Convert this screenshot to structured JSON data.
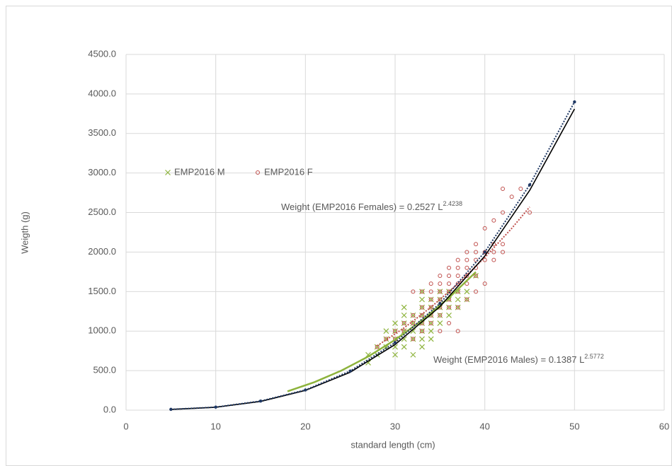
{
  "chart_data": {
    "type": "scatter",
    "xlabel": "standard length (cm)",
    "ylabel": "Weigth (g)",
    "xlim": [
      0,
      60
    ],
    "xticks": [
      0,
      10,
      20,
      30,
      40,
      50,
      60
    ],
    "ylim": [
      0,
      4500
    ],
    "yticks": [
      {
        "value": 0,
        "label": "0.0"
      },
      {
        "value": 500,
        "label": "500.0"
      },
      {
        "value": 1000,
        "label": "1000.0"
      },
      {
        "value": 1500,
        "label": "1500.0"
      },
      {
        "value": 2000,
        "label": "2000.0"
      },
      {
        "value": 2500,
        "label": "2500.0"
      },
      {
        "value": 3000,
        "label": "3000.0"
      },
      {
        "value": 3500,
        "label": "3500.0"
      },
      {
        "value": 4000,
        "label": "4000.0"
      },
      {
        "value": 4500,
        "label": "4500.0"
      }
    ],
    "grid": true,
    "legend": "middle-left",
    "series": [
      {
        "name": "EMP2016 M",
        "color": "#8db33c",
        "marker": "x",
        "line": null,
        "x": [
          27,
          27,
          28,
          28,
          29,
          29,
          29,
          30,
          30,
          30,
          30,
          30,
          31,
          31,
          31,
          31,
          31,
          31,
          32,
          32,
          32,
          32,
          32,
          33,
          33,
          33,
          33,
          33,
          33,
          33,
          33,
          34,
          34,
          34,
          34,
          34,
          34,
          35,
          35,
          35,
          35,
          35,
          36,
          36,
          36,
          36,
          37,
          37,
          37,
          38,
          38,
          39
        ],
        "values": [
          600,
          700,
          700,
          800,
          800,
          900,
          1000,
          700,
          800,
          900,
          1000,
          1100,
          800,
          900,
          1000,
          1100,
          1200,
          1300,
          700,
          900,
          1000,
          1100,
          1200,
          800,
          900,
          1000,
          1100,
          1200,
          1300,
          1400,
          1500,
          900,
          1000,
          1100,
          1200,
          1300,
          1400,
          1100,
          1200,
          1300,
          1400,
          1500,
          1200,
          1300,
          1400,
          1500,
          1300,
          1400,
          1500,
          1400,
          1500,
          1700
        ]
      },
      {
        "name": "EMP2016 F",
        "color": "#c0504d",
        "marker": "circle",
        "line": null,
        "x": [
          28,
          29,
          30,
          30,
          31,
          31,
          32,
          32,
          32,
          32,
          33,
          33,
          33,
          33,
          33,
          34,
          34,
          34,
          34,
          34,
          34,
          35,
          35,
          35,
          35,
          35,
          35,
          35,
          36,
          36,
          36,
          36,
          36,
          36,
          36,
          37,
          37,
          37,
          37,
          37,
          37,
          37,
          38,
          38,
          38,
          38,
          38,
          38,
          39,
          39,
          39,
          39,
          39,
          39,
          40,
          40,
          40,
          40,
          41,
          41,
          41,
          41,
          42,
          42,
          42,
          42,
          43,
          44,
          45
        ],
        "values": [
          800,
          900,
          900,
          1000,
          1000,
          1100,
          900,
          1100,
          1200,
          1500,
          1000,
          1100,
          1200,
          1300,
          1500,
          1100,
          1200,
          1300,
          1400,
          1500,
          1600,
          1000,
          1200,
          1300,
          1400,
          1500,
          1600,
          1700,
          1100,
          1300,
          1400,
          1500,
          1600,
          1700,
          1800,
          1000,
          1300,
          1500,
          1600,
          1700,
          1800,
          1900,
          1400,
          1600,
          1700,
          1800,
          1900,
          2000,
          1500,
          1700,
          1800,
          1900,
          2000,
          2100,
          1600,
          1900,
          2000,
          2300,
          1900,
          2000,
          2100,
          2400,
          2000,
          2100,
          2500,
          2800,
          2700,
          2800,
          2500
        ]
      },
      {
        "color": "#8db33c",
        "marker": null,
        "line": "solid",
        "x": [
          18,
          21,
          24,
          27,
          30,
          33,
          36,
          39
        ],
        "values": [
          238,
          354,
          500,
          678,
          890,
          1136,
          1422,
          1748
        ]
      },
      {
        "color": "#c0504d",
        "marker": null,
        "line": "dotted",
        "x": [
          28,
          31,
          34,
          37,
          40,
          43,
          45
        ],
        "values": [
          814,
          1041,
          1303,
          1599,
          1932,
          2300,
          2570
        ]
      },
      {
        "color": "#000000",
        "marker": null,
        "line": "solid",
        "x": [
          5,
          10,
          15,
          20,
          25,
          30,
          35,
          40,
          45,
          50
        ],
        "values": [
          9,
          36,
          110,
          250,
          480,
          830,
          1310,
          1950,
          2780,
          3810
        ]
      },
      {
        "color": "#1f3864",
        "marker": "dot",
        "line": "dotted",
        "x": [
          5,
          10,
          15,
          20,
          25,
          30,
          35,
          40,
          45,
          50
        ],
        "values": [
          10,
          38,
          115,
          255,
          495,
          855,
          1350,
          2000,
          2850,
          3900
        ]
      }
    ],
    "annotations": [
      {
        "text": "Weight (EMP2016 Females) = 0.2527 L",
        "superscript": "2.4238"
      },
      {
        "text": "Weight (EMP2016 Males) = 0.1387 L",
        "superscript": "2.5772"
      }
    ]
  }
}
